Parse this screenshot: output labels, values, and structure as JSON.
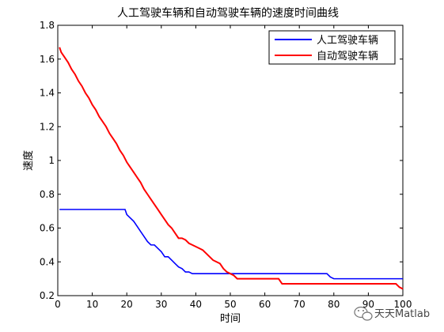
{
  "chart_data": {
    "type": "line",
    "title": "人工驾驶车辆和自动驾驶车辆的速度时间曲线",
    "xlabel": "时间",
    "ylabel": "速度",
    "xlim": [
      0,
      100
    ],
    "ylim": [
      0.2,
      1.8
    ],
    "xticks": [
      0,
      10,
      20,
      30,
      40,
      50,
      60,
      70,
      80,
      90,
      100
    ],
    "yticks": [
      0.2,
      0.4,
      0.6,
      0.8,
      1,
      1.2,
      1.4,
      1.6,
      1.8
    ],
    "grid": false,
    "legend": "top-right",
    "series": [
      {
        "name": "人工驾驶车辆",
        "color": "#0000ff",
        "points": [
          [
            0.5,
            0.71
          ],
          [
            19.5,
            0.71
          ],
          [
            20,
            0.68
          ],
          [
            21,
            0.66
          ],
          [
            22,
            0.64
          ],
          [
            23,
            0.61
          ],
          [
            24,
            0.58
          ],
          [
            25,
            0.55
          ],
          [
            26,
            0.52
          ],
          [
            27,
            0.5
          ],
          [
            28,
            0.5
          ],
          [
            29,
            0.48
          ],
          [
            30,
            0.46
          ],
          [
            31,
            0.43
          ],
          [
            32,
            0.43
          ],
          [
            33,
            0.41
          ],
          [
            34,
            0.39
          ],
          [
            35,
            0.37
          ],
          [
            36,
            0.36
          ],
          [
            37,
            0.34
          ],
          [
            38,
            0.34
          ],
          [
            39,
            0.33
          ],
          [
            78,
            0.33
          ],
          [
            79,
            0.31
          ],
          [
            80,
            0.3
          ],
          [
            100,
            0.3
          ]
        ]
      },
      {
        "name": "自动驾驶车辆",
        "color": "#ff0000",
        "points": [
          [
            0.5,
            1.67
          ],
          [
            1,
            1.64
          ],
          [
            2,
            1.61
          ],
          [
            3,
            1.58
          ],
          [
            4,
            1.54
          ],
          [
            5,
            1.51
          ],
          [
            6,
            1.47
          ],
          [
            7,
            1.44
          ],
          [
            8,
            1.4
          ],
          [
            9,
            1.37
          ],
          [
            10,
            1.33
          ],
          [
            11,
            1.3
          ],
          [
            12,
            1.26
          ],
          [
            13,
            1.23
          ],
          [
            14,
            1.2
          ],
          [
            15,
            1.16
          ],
          [
            16,
            1.13
          ],
          [
            17,
            1.1
          ],
          [
            18,
            1.06
          ],
          [
            19,
            1.03
          ],
          [
            20,
            0.99
          ],
          [
            21,
            0.96
          ],
          [
            22,
            0.93
          ],
          [
            23,
            0.9
          ],
          [
            24,
            0.87
          ],
          [
            25,
            0.83
          ],
          [
            26,
            0.8
          ],
          [
            27,
            0.77
          ],
          [
            28,
            0.74
          ],
          [
            29,
            0.71
          ],
          [
            30,
            0.68
          ],
          [
            31,
            0.65
          ],
          [
            32,
            0.62
          ],
          [
            33,
            0.6
          ],
          [
            34,
            0.57
          ],
          [
            35,
            0.54
          ],
          [
            36,
            0.54
          ],
          [
            37,
            0.53
          ],
          [
            38,
            0.51
          ],
          [
            39,
            0.5
          ],
          [
            40,
            0.49
          ],
          [
            41,
            0.48
          ],
          [
            42,
            0.47
          ],
          [
            43,
            0.45
          ],
          [
            44,
            0.43
          ],
          [
            45,
            0.41
          ],
          [
            46,
            0.4
          ],
          [
            47,
            0.39
          ],
          [
            48,
            0.36
          ],
          [
            49,
            0.34
          ],
          [
            50,
            0.33
          ],
          [
            51,
            0.32
          ],
          [
            52,
            0.3
          ],
          [
            64,
            0.3
          ],
          [
            65,
            0.27
          ],
          [
            90,
            0.27
          ],
          [
            91,
            0.27
          ],
          [
            98,
            0.27
          ],
          [
            99,
            0.25
          ],
          [
            100,
            0.24
          ]
        ]
      }
    ]
  },
  "watermark": {
    "text": "天天Matlab",
    "icon": "wechat-icon"
  }
}
